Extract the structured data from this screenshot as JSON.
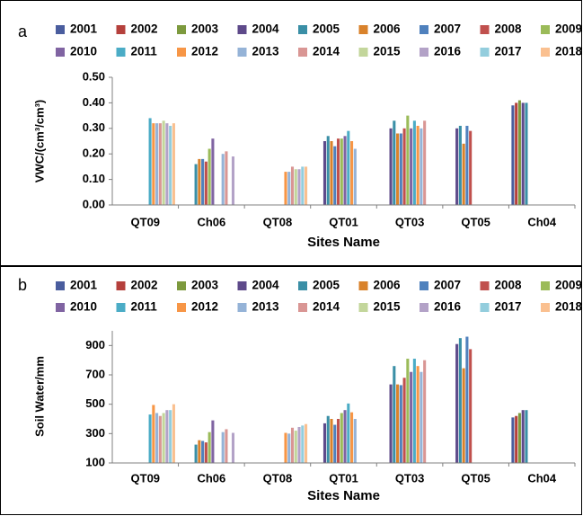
{
  "chart_data": [
    {
      "type": "bar",
      "label": "a",
      "y_label": "VWC/(cm³/cm³)",
      "x_label": "Sites Name",
      "categories": [
        "QT09",
        "Ch06",
        "QT08",
        "QT01",
        "QT03",
        "QT05",
        "Ch04"
      ],
      "ylim": [
        0,
        0.5
      ],
      "yticks": [
        {
          "value": 0,
          "label": "0.00"
        },
        {
          "value": 0.1,
          "label": "0.10"
        },
        {
          "value": 0.2,
          "label": "0.20"
        },
        {
          "value": 0.3,
          "label": "0.30"
        },
        {
          "value": 0.4,
          "label": "0.40"
        },
        {
          "value": 0.5,
          "label": "0.50"
        }
      ],
      "series": [
        {
          "name": "2001",
          "color": "#4a5d9e",
          "values": [
            null,
            null,
            null,
            null,
            null,
            null,
            0.39
          ]
        },
        {
          "name": "2002",
          "color": "#b5403c",
          "values": [
            null,
            null,
            null,
            null,
            null,
            null,
            0.4
          ]
        },
        {
          "name": "2003",
          "color": "#7d9a3e",
          "values": [
            null,
            null,
            null,
            null,
            null,
            null,
            0.41
          ]
        },
        {
          "name": "2004",
          "color": "#5e4a8a",
          "values": [
            null,
            null,
            null,
            0.25,
            0.3,
            0.3,
            0.4
          ]
        },
        {
          "name": "2005",
          "color": "#3a8fa6",
          "values": [
            null,
            0.16,
            null,
            0.27,
            0.33,
            0.31,
            0.4
          ]
        },
        {
          "name": "2006",
          "color": "#d9822b",
          "values": [
            null,
            0.18,
            null,
            0.25,
            0.28,
            0.24,
            null
          ]
        },
        {
          "name": "2007",
          "color": "#4f81bd",
          "values": [
            null,
            0.18,
            null,
            0.23,
            0.28,
            0.31,
            null
          ]
        },
        {
          "name": "2008",
          "color": "#c0504d",
          "values": [
            null,
            0.17,
            null,
            0.26,
            0.3,
            0.29,
            null
          ]
        },
        {
          "name": "2009",
          "color": "#9bbb59",
          "values": [
            null,
            0.22,
            null,
            0.26,
            0.35,
            null,
            null
          ]
        },
        {
          "name": "2010",
          "color": "#8064a2",
          "values": [
            null,
            0.26,
            null,
            0.27,
            0.3,
            null,
            null
          ]
        },
        {
          "name": "2011",
          "color": "#4bacc6",
          "values": [
            0.34,
            null,
            null,
            0.29,
            0.33,
            null,
            null
          ]
        },
        {
          "name": "2012",
          "color": "#f79646",
          "values": [
            0.32,
            null,
            0.13,
            0.25,
            0.31,
            null,
            null
          ]
        },
        {
          "name": "2013",
          "color": "#95b3d7",
          "values": [
            0.32,
            0.2,
            0.13,
            0.22,
            0.3,
            null,
            null
          ]
        },
        {
          "name": "2014",
          "color": "#d99694",
          "values": [
            0.32,
            0.21,
            0.15,
            null,
            0.33,
            null,
            null
          ]
        },
        {
          "name": "2015",
          "color": "#c3d69b",
          "values": [
            0.33,
            null,
            0.14,
            null,
            null,
            null,
            null
          ]
        },
        {
          "name": "2016",
          "color": "#b3a2c7",
          "values": [
            0.32,
            0.19,
            0.14,
            null,
            null,
            null,
            null
          ]
        },
        {
          "name": "2017",
          "color": "#93cddd",
          "values": [
            0.31,
            null,
            0.15,
            null,
            null,
            null,
            null
          ]
        },
        {
          "name": "2018",
          "color": "#fac090",
          "values": [
            0.32,
            null,
            0.15,
            null,
            null,
            null,
            null
          ]
        }
      ]
    },
    {
      "type": "bar",
      "label": "b",
      "y_label": "Soil Water/mm",
      "x_label": "Sites Name",
      "categories": [
        "QT09",
        "Ch06",
        "QT08",
        "QT01",
        "QT03",
        "QT05",
        "Ch04"
      ],
      "ylim": [
        100,
        1000
      ],
      "yticks": [
        100,
        300,
        500,
        700,
        900
      ],
      "series": [
        {
          "name": "2001",
          "color": "#4a5d9e",
          "values": [
            null,
            null,
            null,
            null,
            null,
            null,
            410
          ]
        },
        {
          "name": "2002",
          "color": "#b5403c",
          "values": [
            null,
            null,
            null,
            null,
            null,
            null,
            420
          ]
        },
        {
          "name": "2003",
          "color": "#7d9a3e",
          "values": [
            null,
            null,
            null,
            null,
            null,
            null,
            440
          ]
        },
        {
          "name": "2004",
          "color": "#5e4a8a",
          "values": [
            null,
            null,
            null,
            370,
            635,
            910,
            460
          ]
        },
        {
          "name": "2005",
          "color": "#3a8fa6",
          "values": [
            null,
            225,
            null,
            420,
            760,
            950,
            460
          ]
        },
        {
          "name": "2006",
          "color": "#d9822b",
          "values": [
            null,
            255,
            null,
            400,
            635,
            745,
            null
          ]
        },
        {
          "name": "2007",
          "color": "#4f81bd",
          "values": [
            null,
            250,
            null,
            360,
            630,
            960,
            null
          ]
        },
        {
          "name": "2008",
          "color": "#c0504d",
          "values": [
            null,
            240,
            null,
            400,
            680,
            875,
            null
          ]
        },
        {
          "name": "2009",
          "color": "#9bbb59",
          "values": [
            null,
            310,
            null,
            440,
            810,
            null,
            null
          ]
        },
        {
          "name": "2010",
          "color": "#8064a2",
          "values": [
            null,
            390,
            null,
            460,
            720,
            null,
            null
          ]
        },
        {
          "name": "2011",
          "color": "#4bacc6",
          "values": [
            430,
            null,
            null,
            505,
            810,
            null,
            null
          ]
        },
        {
          "name": "2012",
          "color": "#f79646",
          "values": [
            495,
            null,
            305,
            445,
            760,
            null,
            null
          ]
        },
        {
          "name": "2013",
          "color": "#95b3d7",
          "values": [
            440,
            310,
            300,
            400,
            720,
            null,
            null
          ]
        },
        {
          "name": "2014",
          "color": "#d99694",
          "values": [
            420,
            330,
            340,
            null,
            800,
            null,
            null
          ]
        },
        {
          "name": "2015",
          "color": "#c3d69b",
          "values": [
            440,
            null,
            320,
            null,
            null,
            null,
            null
          ]
        },
        {
          "name": "2016",
          "color": "#b3a2c7",
          "values": [
            460,
            305,
            345,
            null,
            null,
            null,
            null
          ]
        },
        {
          "name": "2017",
          "color": "#93cddd",
          "values": [
            460,
            null,
            355,
            null,
            null,
            null,
            null
          ]
        },
        {
          "name": "2018",
          "color": "#fac090",
          "values": [
            500,
            null,
            365,
            null,
            null,
            null,
            null
          ]
        }
      ]
    }
  ]
}
